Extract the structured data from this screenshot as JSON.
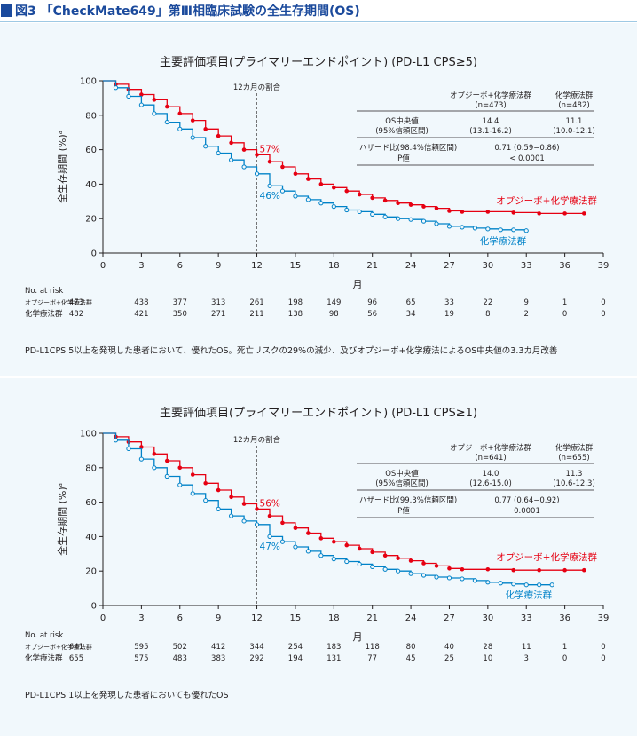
{
  "header": {
    "title": "図3 「CheckMate649」第Ⅲ相臨床試験の全生存期間(OS)"
  },
  "chart_data": [
    {
      "type": "line",
      "title": "主要評価項目(プライマリーエンドポイント) (PD-L1 CPS≥5)",
      "xlabel": "月",
      "ylabel": "全生存期間 (%)",
      "ylabel_sup": "a",
      "xlim": [
        0,
        39
      ],
      "ylim": [
        0,
        100
      ],
      "xticks": [
        0,
        3,
        6,
        9,
        12,
        15,
        18,
        21,
        24,
        27,
        30,
        33,
        36,
        39
      ],
      "yticks": [
        0,
        20,
        40,
        60,
        80,
        100
      ],
      "grid": false,
      "marker_line_label": "12カ月の割合",
      "series": [
        {
          "name": "オプジーボ+化学療法群",
          "color": "#e60012",
          "x": [
            0,
            1,
            2,
            3,
            4,
            5,
            6,
            7,
            8,
            9,
            10,
            11,
            12,
            13,
            14,
            15,
            16,
            17,
            18,
            19,
            20,
            21,
            22,
            23,
            24,
            25,
            26,
            27,
            28,
            30,
            32,
            34,
            36,
            37.5
          ],
          "y": [
            100,
            98,
            95,
            92,
            89,
            85,
            81,
            77,
            72,
            68,
            64,
            60,
            57,
            53,
            50,
            46,
            43,
            40,
            38,
            36,
            34,
            32,
            30.5,
            29,
            28,
            27,
            26,
            24.5,
            24,
            24,
            23.5,
            23,
            23,
            23
          ],
          "end_label": "オプジーボ+化学療法群",
          "landmark_label": "57%",
          "landmark_x": 12
        },
        {
          "name": "化学療法群",
          "color": "#0082c8",
          "x": [
            0,
            1,
            2,
            3,
            4,
            5,
            6,
            7,
            8,
            9,
            10,
            11,
            12,
            13,
            14,
            15,
            16,
            17,
            18,
            19,
            20,
            21,
            22,
            23,
            24,
            25,
            26,
            27,
            28,
            29,
            30,
            31,
            32,
            33
          ],
          "y": [
            100,
            96,
            91,
            86,
            81,
            76,
            72,
            67,
            62,
            58,
            54,
            50,
            46,
            39,
            36,
            33,
            31,
            29,
            27,
            25,
            24,
            22.5,
            21,
            20,
            19.5,
            18.5,
            17,
            15.5,
            15,
            14.5,
            14,
            13.5,
            13.5,
            13
          ],
          "end_label": "化学療法群",
          "landmark_label": "46%",
          "landmark_x": 12
        }
      ],
      "stats_table": {
        "col1_header_1": "オプジーボ+化学療法群",
        "col1_header_2": "(n=473)",
        "col2_header_1": "化学療法群",
        "col2_header_2": "(n=482)",
        "median_label_1": "OS中央値",
        "median_label_2": "(95%信頼区間)",
        "median_col1": "14.4",
        "median_col1_ci": "(13.1-16.2)",
        "median_col2": "11.1",
        "median_col2_ci": "(10.0-12.1)",
        "hr_label": "ハザード比(98.4%信頼区間)",
        "hr_value": "0.71 (0.59−0.86)",
        "p_label": "P値",
        "p_value": "< 0.0001"
      },
      "risk_table": {
        "title": "No. at risk",
        "rows": [
          {
            "label": "オプジーボ+化学療法群",
            "values": [
              "473",
              "438",
              "377",
              "313",
              "261",
              "198",
              "149",
              "96",
              "65",
              "33",
              "22",
              "9",
              "1",
              "0"
            ]
          },
          {
            "label": "化学療法群",
            "values": [
              "482",
              "421",
              "350",
              "271",
              "211",
              "138",
              "98",
              "56",
              "34",
              "19",
              "8",
              "2",
              "0",
              "0"
            ]
          }
        ]
      },
      "caption": "PD-L1CPS 5以上を発現した患者において、優れたOS。死亡リスクの29%の減少、及びオプジーボ+化学療法によるOS中央値の3.3カ月改善"
    },
    {
      "type": "line",
      "title": "主要評価項目(プライマリーエンドポイント) (PD-L1 CPS≥1)",
      "xlabel": "月",
      "ylabel": "全生存期間 (%)",
      "ylabel_sup": "a",
      "xlim": [
        0,
        39
      ],
      "ylim": [
        0,
        100
      ],
      "xticks": [
        0,
        3,
        6,
        9,
        12,
        15,
        18,
        21,
        24,
        27,
        30,
        33,
        36,
        39
      ],
      "yticks": [
        0,
        20,
        40,
        60,
        80,
        100
      ],
      "grid": false,
      "marker_line_label": "12カ月の割合",
      "series": [
        {
          "name": "オプジーボ+化学療法群",
          "color": "#e60012",
          "x": [
            0,
            1,
            2,
            3,
            4,
            5,
            6,
            7,
            8,
            9,
            10,
            11,
            12,
            13,
            14,
            15,
            16,
            17,
            18,
            19,
            20,
            21,
            22,
            23,
            24,
            25,
            26,
            27,
            28,
            30,
            32,
            34,
            36,
            37.5
          ],
          "y": [
            100,
            98,
            95,
            92,
            88,
            84,
            80,
            76,
            71,
            67,
            63,
            59,
            56,
            52,
            48,
            45,
            42,
            39,
            37,
            35,
            33,
            31,
            29,
            27.5,
            26,
            24.5,
            23,
            21.5,
            21,
            21,
            20.5,
            20.5,
            20.5,
            20.5
          ],
          "end_label": "オプジーボ+化学療法群",
          "landmark_label": "56%",
          "landmark_x": 12
        },
        {
          "name": "化学療法群",
          "color": "#0082c8",
          "x": [
            0,
            1,
            2,
            3,
            4,
            5,
            6,
            7,
            8,
            9,
            10,
            11,
            12,
            13,
            14,
            15,
            16,
            17,
            18,
            19,
            20,
            21,
            22,
            23,
            24,
            25,
            26,
            27,
            28,
            29,
            30,
            31,
            32,
            33,
            34,
            35
          ],
          "y": [
            100,
            96,
            91,
            85,
            80,
            75,
            70,
            65,
            61,
            56,
            52,
            49,
            47,
            40,
            37,
            34,
            31.5,
            29,
            27,
            25.5,
            24,
            22.5,
            21,
            20,
            18.5,
            17.5,
            16.5,
            16,
            15.5,
            14.5,
            13.5,
            13,
            12.5,
            12,
            12,
            12
          ],
          "end_label": "化学療法群",
          "landmark_label": "47%",
          "landmark_x": 12
        }
      ],
      "stats_table": {
        "col1_header_1": "オプジーボ+化学療法群",
        "col1_header_2": "(n=641)",
        "col2_header_1": "化学療法群",
        "col2_header_2": "(n=655)",
        "median_label_1": "OS中央値",
        "median_label_2": "(95%信頼区間)",
        "median_col1": "14.0",
        "median_col1_ci": "(12.6-15.0)",
        "median_col2": "11.3",
        "median_col2_ci": "(10.6-12.3)",
        "hr_label": "ハザード比(99.3%信頼区間)",
        "hr_value": "0.77 (0.64−0.92)",
        "p_label": "P値",
        "p_value": "0.0001"
      },
      "risk_table": {
        "title": "No. at risk",
        "rows": [
          {
            "label": "オプジーボ+化学療法群",
            "values": [
              "641",
              "595",
              "502",
              "412",
              "344",
              "254",
              "183",
              "118",
              "80",
              "40",
              "28",
              "11",
              "1",
              "0"
            ]
          },
          {
            "label": "化学療法群",
            "values": [
              "655",
              "575",
              "483",
              "383",
              "292",
              "194",
              "131",
              "77",
              "45",
              "25",
              "10",
              "3",
              "0",
              "0"
            ]
          }
        ]
      },
      "caption": "PD-L1CPS 1以上を発現した患者においても優れたOS"
    }
  ]
}
